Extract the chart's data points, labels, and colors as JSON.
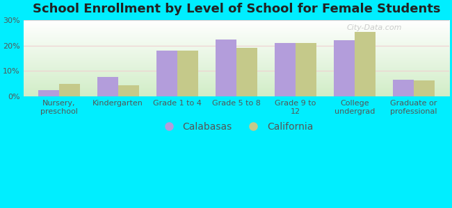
{
  "title": "School Enrollment by Level of School for Female Students",
  "categories": [
    "Nursery,\npreschool",
    "Kindergarten",
    "Grade 1 to 4",
    "Grade 5 to 8",
    "Grade 9 to\n12",
    "College\nundergrad",
    "Graduate or\nprofessional"
  ],
  "calabasas": [
    2.5,
    7.5,
    18.0,
    22.5,
    21.0,
    22.0,
    6.5
  ],
  "california": [
    4.8,
    4.3,
    18.0,
    19.0,
    21.0,
    25.5,
    6.3
  ],
  "calabasas_color": "#b39ddb",
  "california_color": "#c5c98a",
  "background_color": "#00eeff",
  "plot_bg_top": "#ffffff",
  "plot_bg_bottom": "#c8e6c0",
  "grid_color": "#e8e8e8",
  "ylabel_values": [
    "0%",
    "10%",
    "20%",
    "30%"
  ],
  "ylim": [
    0,
    30
  ],
  "yticks": [
    0,
    10,
    20,
    30
  ],
  "bar_width": 0.35,
  "title_fontsize": 13,
  "tick_fontsize": 8,
  "legend_fontsize": 10,
  "watermark_text": "City-Data.com",
  "legend_labels": [
    "Calabasas",
    "California"
  ]
}
